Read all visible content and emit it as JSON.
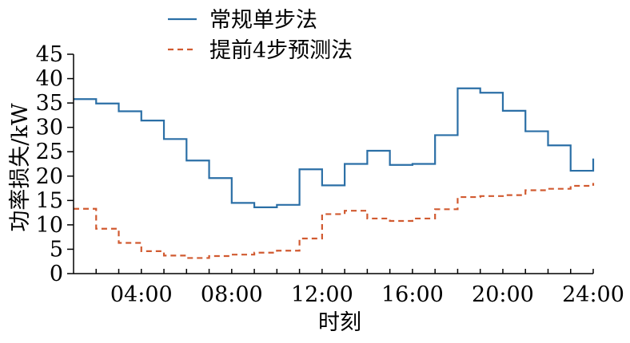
{
  "chart_data": {
    "type": "line",
    "step": true,
    "xlabel": "时刻",
    "ylabel": "功率损失/kW",
    "xlim": [
      1,
      24
    ],
    "ylim": [
      0,
      45
    ],
    "yticks": [
      0,
      5,
      10,
      15,
      20,
      25,
      30,
      35,
      40,
      45
    ],
    "xticks": [
      {
        "value": 4,
        "label": "04:00"
      },
      {
        "value": 8,
        "label": "08:00"
      },
      {
        "value": 12,
        "label": "12:00"
      },
      {
        "value": 16,
        "label": "16:00"
      },
      {
        "value": 20,
        "label": "20:00"
      },
      {
        "value": 24,
        "label": "24:00"
      }
    ],
    "legend_position": "top-center",
    "grid": false,
    "x_hours": [
      1,
      2,
      3,
      4,
      5,
      6,
      7,
      8,
      9,
      10,
      11,
      12,
      13,
      14,
      15,
      16,
      17,
      18,
      19,
      20,
      21,
      22,
      23,
      24
    ],
    "series": [
      {
        "name": "常规单步法",
        "color": "#2b6fa6",
        "dash": "solid",
        "values": [
          35.8,
          34.9,
          33.3,
          31.4,
          27.6,
          23.2,
          19.6,
          14.5,
          13.6,
          14.1,
          21.4,
          18.1,
          22.5,
          25.2,
          22.3,
          22.5,
          28.4,
          38.0,
          37.1,
          33.4,
          29.2,
          26.3,
          21.1,
          23.6
        ]
      },
      {
        "name": "提前4步预测法",
        "color": "#d15a30",
        "dash": "dashed",
        "values": [
          13.3,
          9.2,
          6.3,
          4.6,
          3.7,
          3.2,
          3.6,
          3.9,
          4.3,
          4.7,
          7.2,
          12.2,
          12.9,
          11.3,
          10.8,
          11.3,
          13.2,
          15.7,
          15.9,
          16.1,
          17.1,
          17.4,
          18.0,
          18.6
        ]
      }
    ]
  }
}
